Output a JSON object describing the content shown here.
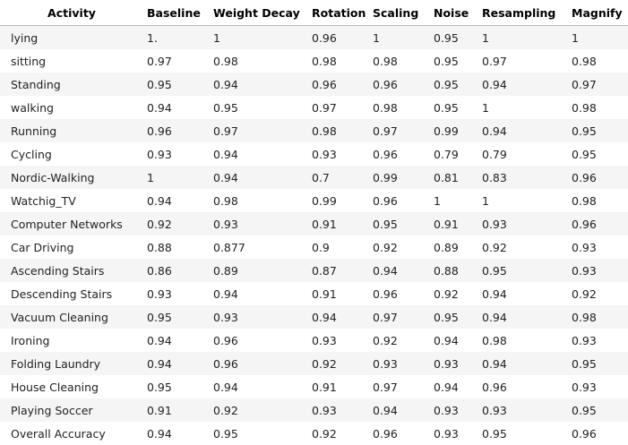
{
  "table": {
    "headers": [
      "Activity",
      "Baseline",
      "Weight Decay",
      "Rotation",
      "Scaling",
      "Noise",
      "Resampling",
      "Magnify"
    ],
    "rows": [
      [
        "lying",
        "1.",
        "1",
        "0.96",
        "1",
        "0.95",
        "1",
        "1"
      ],
      [
        "sitting",
        "0.97",
        "0.98",
        "0.98",
        "0.98",
        "0.95",
        "0.97",
        "0.98"
      ],
      [
        "Standing",
        "0.95",
        "0.94",
        "0.96",
        "0.96",
        "0.95",
        "0.94",
        "0.97"
      ],
      [
        "walking",
        "0.94",
        "0.95",
        "0.97",
        "0.98",
        "0.95",
        "1",
        "0.98"
      ],
      [
        "Running",
        "0.96",
        "0.97",
        "0.98",
        "0.97",
        "0.99",
        "0.94",
        "0.95"
      ],
      [
        "Cycling",
        "0.93",
        "0.94",
        "0.93",
        "0.96",
        "0.79",
        "0.79",
        "0.95"
      ],
      [
        "Nordic-Walking",
        "1",
        "0.94",
        "0.7",
        "0.99",
        "0.81",
        "0.83",
        "0.96"
      ],
      [
        "Watchig_TV",
        "0.94",
        "0.98",
        "0.99",
        "0.96",
        "1",
        "1",
        "0.98"
      ],
      [
        "Computer Networks",
        "0.92",
        "0.93",
        "0.91",
        "0.95",
        "0.91",
        "0.93",
        "0.96"
      ],
      [
        "Car Driving",
        "0.88",
        "0.877",
        "0.9",
        "0.92",
        "0.89",
        "0.92",
        "0.93"
      ],
      [
        "Ascending Stairs",
        "0.86",
        "0.89",
        "0.87",
        "0.94",
        "0.88",
        "0.95",
        "0.93"
      ],
      [
        "Descending Stairs",
        "0.93",
        "0.94",
        "0.91",
        "0.96",
        "0.92",
        "0.94",
        "0.92"
      ],
      [
        "Vacuum Cleaning",
        "0.95",
        "0.93",
        "0.94",
        "0.97",
        "0.95",
        "0.94",
        "0.98"
      ],
      [
        "Ironing",
        "0.94",
        "0.96",
        "0.93",
        "0.92",
        "0.94",
        "0.98",
        "0.93"
      ],
      [
        "Folding Laundry",
        "0.94",
        "0.96",
        "0.92",
        "0.93",
        "0.93",
        "0.94",
        "0.95"
      ],
      [
        "House Cleaning",
        "0.95",
        "0.94",
        "0.91",
        "0.97",
        "0.94",
        "0.96",
        "0.93"
      ],
      [
        "Playing Soccer",
        "0.91",
        "0.92",
        "0.93",
        "0.94",
        "0.93",
        "0.93",
        "0.95"
      ],
      [
        "Overall Accuracy",
        "0.94",
        "0.95",
        "0.92",
        "0.96",
        "0.93",
        "0.95",
        "0.96"
      ]
    ]
  },
  "colors": {
    "stripe": "#f5f5f5",
    "background": "#ffffff",
    "text": "#222222",
    "header_text": "#000000",
    "header_rule": "#bbbbbb"
  }
}
